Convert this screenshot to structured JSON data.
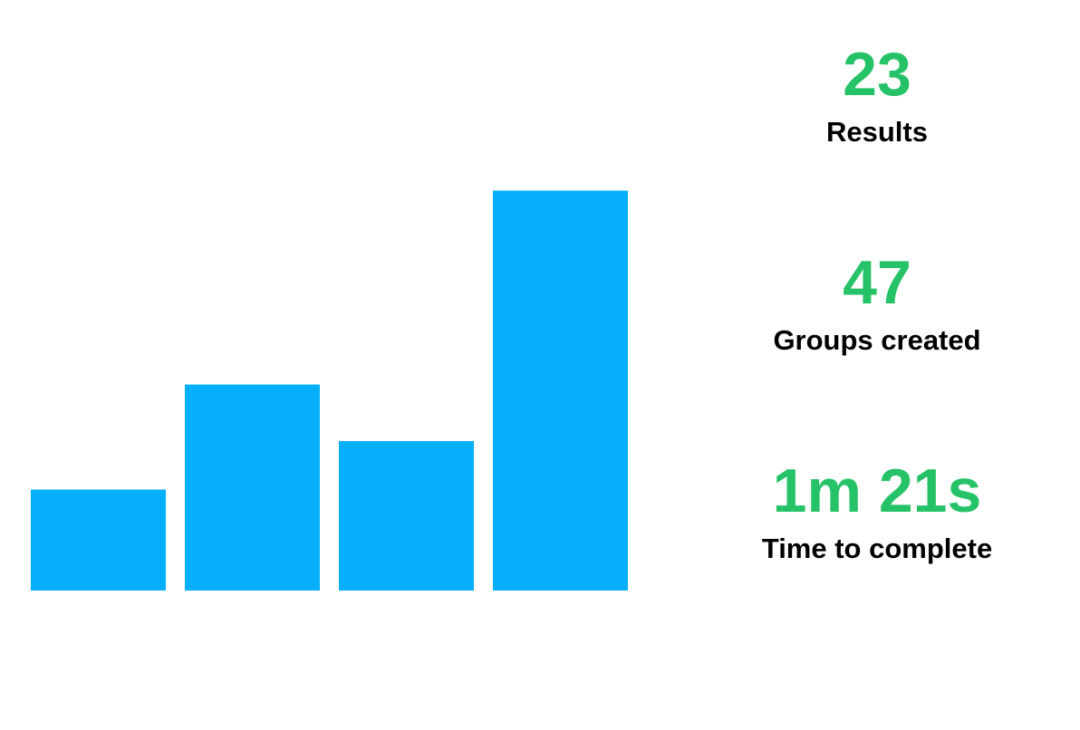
{
  "chart_data": {
    "type": "bar",
    "categories": [
      "",
      "",
      "",
      ""
    ],
    "values": [
      25,
      51,
      37,
      99
    ],
    "ylim": [
      0,
      100
    ],
    "title": "",
    "xlabel": "",
    "ylabel": "",
    "grid": false,
    "axes_visible": false,
    "bar_color": "#06AFFA"
  },
  "stats": [
    {
      "value": "23",
      "label": "Results"
    },
    {
      "value": "47",
      "label": "Groups created"
    },
    {
      "value": "1m 21s",
      "label": "Time to complete"
    }
  ],
  "colors": {
    "stat_value": "#26C267",
    "stat_label": "#000000",
    "background": "#FFFFFF"
  }
}
